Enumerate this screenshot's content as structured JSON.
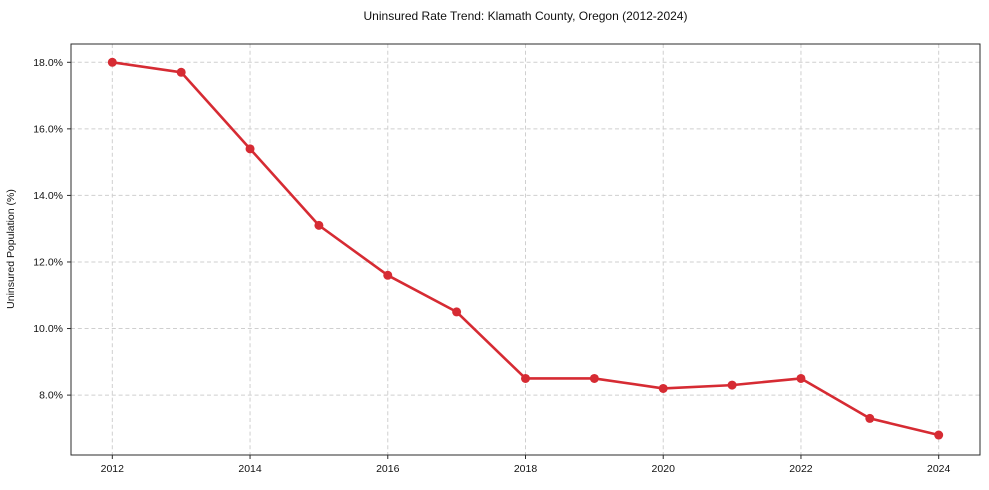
{
  "chart_data": {
    "type": "line",
    "title": "Uninsured Rate Trend: Klamath County, Oregon (2012-2024)",
    "xlabel": "",
    "ylabel": "Uninsured Population (%)",
    "x": [
      2012,
      2013,
      2014,
      2015,
      2016,
      2017,
      2018,
      2019,
      2020,
      2021,
      2022,
      2023,
      2024
    ],
    "values": [
      18.0,
      17.7,
      15.4,
      13.1,
      11.6,
      10.5,
      8.5,
      8.5,
      8.2,
      8.3,
      8.5,
      7.3,
      6.8
    ],
    "x_ticks": [
      2012,
      2014,
      2016,
      2018,
      2020,
      2022,
      2024
    ],
    "x_tick_labels": [
      "2012",
      "2014",
      "2016",
      "2018",
      "2020",
      "2022",
      "2024"
    ],
    "y_ticks": [
      8,
      10,
      12,
      14,
      16,
      18
    ],
    "y_tick_labels": [
      "8.0%",
      "10.0%",
      "12.0%",
      "14.0%",
      "16.0%",
      "18.0%"
    ],
    "xlim": [
      2011.4,
      2024.6
    ],
    "ylim": [
      6.2,
      18.55
    ],
    "grid": true,
    "legend": "none",
    "line_color": "#d62b33",
    "marker": "circle"
  }
}
